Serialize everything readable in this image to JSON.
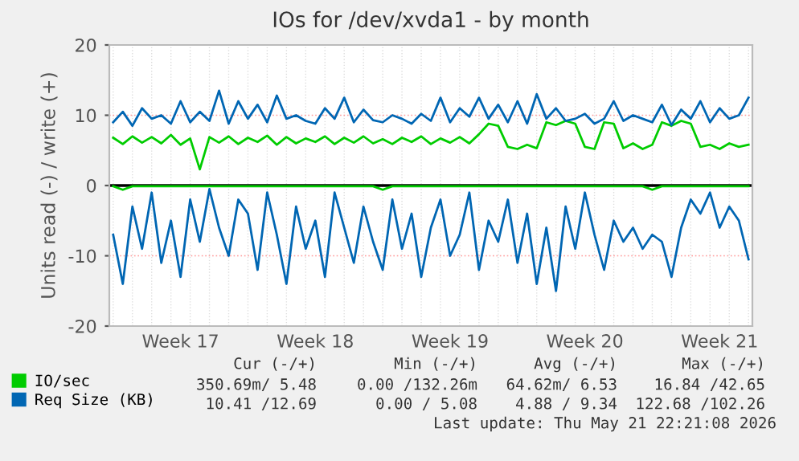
{
  "chart_data": {
    "type": "line",
    "title": "IOs for /dev/xvda1 - by month",
    "ylabel": "Units read (-) / write (+)",
    "categories": [
      null,
      null,
      null,
      null,
      null,
      null,
      null,
      "Week 17",
      null,
      null,
      null,
      null,
      null,
      null,
      null,
      null,
      null,
      null,
      null,
      null,
      null,
      "Week 18",
      null,
      null,
      null,
      null,
      null,
      null,
      null,
      null,
      null,
      null,
      null,
      null,
      null,
      "Week 19",
      null,
      null,
      null,
      null,
      null,
      null,
      null,
      null,
      null,
      null,
      null,
      null,
      null,
      "Week 20",
      null,
      null,
      null,
      null,
      null,
      null,
      null,
      null,
      null,
      null,
      null,
      null,
      null,
      "Week 21",
      null,
      null,
      null
    ],
    "series": [
      {
        "color": "#00cc00",
        "values": [
          -0.1,
          -0.6,
          -0.1,
          -0.1,
          -0.1,
          -0.1,
          -0.1,
          -0.1,
          -0.1,
          -0.1,
          -0.1,
          -0.1,
          -0.1,
          -0.1,
          -0.1,
          -0.1,
          -0.1,
          -0.1,
          -0.1,
          -0.1,
          -0.1,
          -0.1,
          -0.1,
          -0.1,
          -0.1,
          -0.1,
          -0.1,
          -0.1,
          -0.6,
          -0.1,
          -0.1,
          -0.1,
          -0.1,
          -0.1,
          -0.1,
          -0.1,
          -0.1,
          -0.1,
          -0.1,
          -0.1,
          -0.1,
          -0.1,
          -0.1,
          -0.1,
          -0.1,
          -0.1,
          -0.1,
          -0.1,
          -0.1,
          -0.1,
          -0.1,
          -0.1,
          -0.1,
          -0.1,
          -0.1,
          -0.1,
          -0.6,
          -0.1,
          -0.1,
          -0.1,
          -0.1,
          -0.1,
          -0.1,
          -0.1,
          -0.1,
          -0.1,
          -0.1
        ]
      },
      {
        "name": "IO/sec",
        "color": "#00cc00",
        "values": [
          6.8,
          5.9,
          7,
          6.1,
          6.9,
          6,
          7.2,
          5.8,
          6.7,
          2.3,
          6.9,
          6.1,
          7,
          5.9,
          6.8,
          6.2,
          7.1,
          5.8,
          6.9,
          6,
          6.7,
          6.2,
          7,
          5.9,
          6.8,
          6.1,
          7,
          6,
          6.6,
          5.9,
          6.8,
          6.2,
          7,
          5.9,
          6.7,
          6.1,
          6.9,
          6,
          7.3,
          8.8,
          8.5,
          5.5,
          5.2,
          5.8,
          5.3,
          9,
          8.6,
          9.2,
          8.8,
          5.5,
          5.2,
          9,
          8.8,
          5.3,
          6,
          5.2,
          5.8,
          9,
          8.5,
          9.2,
          8.8,
          5.5,
          5.8,
          5.2,
          6,
          5.5,
          5.8
        ]
      },
      {
        "color": "#0066b3",
        "values": [
          -7,
          -14,
          -3,
          -9,
          -1,
          -11,
          -5,
          -13,
          -2,
          -8,
          -0.5,
          -6,
          -10,
          -2,
          -4,
          -12,
          -1,
          -7,
          -14,
          -3,
          -9,
          -5,
          -13,
          -1,
          -6,
          -11,
          -3,
          -8,
          -12,
          -2,
          -9,
          -4,
          -13,
          -6,
          -2,
          -10,
          -7,
          -1,
          -12,
          -5,
          -8,
          -2,
          -11,
          -4,
          -14,
          -6,
          -15,
          -3,
          -9,
          -1,
          -7,
          -12,
          -5,
          -8,
          -6,
          -9,
          -7,
          -8,
          -13,
          -6,
          -2,
          -4,
          -1,
          -6,
          -3,
          -5,
          -10.5
        ]
      },
      {
        "name": "Req Size (KB)",
        "color": "#0066b3",
        "values": [
          9,
          10.5,
          8.5,
          11,
          9.5,
          10,
          8.8,
          12,
          9,
          10.5,
          9.2,
          13.5,
          8.8,
          12,
          9.5,
          11.5,
          9,
          12.8,
          9.5,
          10,
          9.2,
          8.8,
          11,
          9.5,
          12.5,
          9,
          10.8,
          9.3,
          9,
          10,
          9.5,
          8.8,
          10.2,
          9.2,
          12.5,
          9,
          11,
          9.8,
          12.5,
          9.5,
          11.5,
          9,
          12,
          8.8,
          13,
          9.5,
          11,
          9.2,
          9.5,
          10.2,
          8.8,
          9.5,
          12,
          9.2,
          10,
          9.5,
          9,
          11.5,
          8.6,
          10.8,
          9.5,
          12,
          9,
          11,
          9.5,
          10,
          12.5
        ]
      }
    ],
    "ylim": [
      -20,
      20
    ],
    "yticks": [
      -20,
      -10,
      0,
      10,
      20
    ],
    "ref_lines": [
      {
        "axis": "y",
        "value": 0,
        "color": "#000000"
      }
    ],
    "grid": true,
    "legend": "bottom left",
    "annotations": [
      "Cur (-/+)",
      "Min (-/+)",
      "Avg (-/+)",
      "Max (-/+)",
      "350.69m/ 5.48",
      "0.00 /132.26m",
      "64.62m/ 6.53",
      "16.84 /42.65",
      "10.41 /12.69",
      "0.00 / 5.08",
      "4.88 / 9.34",
      "122.68 /102.26",
      "Last update: Thu May 21 22:21:08 2026"
    ]
  }
}
